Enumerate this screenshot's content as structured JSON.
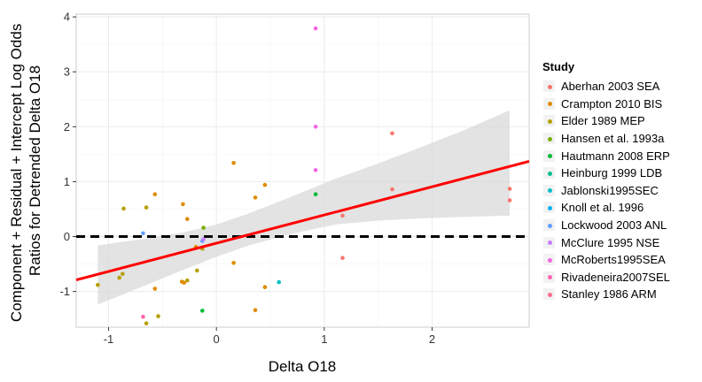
{
  "chart_data": {
    "type": "scatter",
    "xlabel": "Delta O18",
    "ylabel": [
      "Component + Residual + Intercept Log Odds",
      "Ratios for Detrended Delta O18"
    ],
    "xlim": [
      -1.3,
      2.9
    ],
    "ylim": [
      -1.65,
      4.05
    ],
    "x_ticks": [
      -1,
      0,
      1,
      2
    ],
    "y_ticks": [
      -1,
      0,
      1,
      2,
      3,
      4
    ],
    "grid": true,
    "legend_position": "right",
    "legend_title": "Study",
    "series": [
      {
        "name": "Aberhan 2003 SEA",
        "color": "#f8766d",
        "points": [
          [
            1.63,
            1.88
          ],
          [
            2.72,
            0.87
          ],
          [
            2.72,
            0.66
          ],
          [
            1.63,
            0.86
          ],
          [
            1.17,
            0.38
          ],
          [
            1.17,
            -0.39
          ]
        ]
      },
      {
        "name": "Crampton 2010 BIS",
        "color": "#de8c00",
        "points": [
          [
            0.45,
            0.94
          ],
          [
            0.16,
            1.34
          ],
          [
            0.36,
            0.71
          ],
          [
            -0.57,
            0.77
          ],
          [
            -0.31,
            0.59
          ],
          [
            -0.27,
            0.32
          ],
          [
            -0.19,
            -0.19
          ],
          [
            0.16,
            -0.48
          ],
          [
            -0.32,
            -0.82
          ],
          [
            -0.3,
            -0.84
          ],
          [
            0.45,
            -0.92
          ],
          [
            0.36,
            -1.34
          ],
          [
            -0.57,
            -0.95
          ]
        ]
      },
      {
        "name": "Elder 1989 MEP",
        "color": "#b79f00",
        "points": [
          [
            -0.86,
            0.51
          ],
          [
            -0.65,
            0.53
          ],
          [
            -0.13,
            -0.22
          ],
          [
            -0.18,
            -0.62
          ],
          [
            -0.87,
            -0.68
          ],
          [
            -0.9,
            -0.75
          ],
          [
            -1.1,
            -0.88
          ],
          [
            -0.54,
            -1.45
          ],
          [
            -0.65,
            -1.58
          ],
          [
            -0.27,
            -0.8
          ]
        ]
      },
      {
        "name": "Hansen et al. 1993a",
        "color": "#7cae00",
        "points": [
          [
            -0.12,
            0.16
          ]
        ]
      },
      {
        "name": "Hautmann 2008 ERP",
        "color": "#00ba38",
        "points": [
          [
            0.92,
            0.77
          ],
          [
            -0.13,
            -1.35
          ]
        ]
      },
      {
        "name": "Heinburg 1999 LDB",
        "color": "#00c08b",
        "points": []
      },
      {
        "name": "Jablonski1995SEC",
        "color": "#00bfc4",
        "points": [
          [
            0.58,
            -0.83
          ]
        ]
      },
      {
        "name": "Knoll et al. 1996",
        "color": "#00b4f0",
        "points": []
      },
      {
        "name": "Lockwood 2003 ANL",
        "color": "#619cff",
        "points": [
          [
            -0.68,
            0.06
          ],
          [
            -0.13,
            -0.08
          ]
        ]
      },
      {
        "name": "McClure 1995 NSE",
        "color": "#c77cff",
        "points": [
          [
            -0.12,
            -0.05
          ]
        ]
      },
      {
        "name": "McRoberts1995SEA",
        "color": "#f564e3",
        "points": [
          [
            0.92,
            3.79
          ],
          [
            0.92,
            2.0
          ],
          [
            0.92,
            1.21
          ]
        ]
      },
      {
        "name": "Rivadeneira2007SEL",
        "color": "#ff64b0",
        "points": [
          [
            -0.68,
            -1.46
          ]
        ]
      },
      {
        "name": "Stanley 1986 ARM",
        "color": "#ff6c90",
        "points": []
      }
    ],
    "fit_line": {
      "color": "#ff0000",
      "x": [
        -1.3,
        2.9
      ],
      "y": [
        -0.79,
        1.37
      ]
    },
    "confidence_band": {
      "x": [
        -1.1,
        -0.7,
        -0.3,
        0.0,
        0.3,
        0.7,
        1.1,
        1.5,
        1.9,
        2.3,
        2.72
      ],
      "lower": [
        -1.24,
        -0.92,
        -0.6,
        -0.37,
        -0.16,
        0.05,
        0.22,
        0.29,
        0.33,
        0.36,
        0.38
      ],
      "upper": [
        -0.16,
        -0.05,
        0.08,
        0.22,
        0.42,
        0.73,
        1.05,
        1.33,
        1.63,
        1.94,
        2.3
      ]
    },
    "reference_line": {
      "y": 0,
      "style": "dashed",
      "color": "#000000"
    }
  }
}
